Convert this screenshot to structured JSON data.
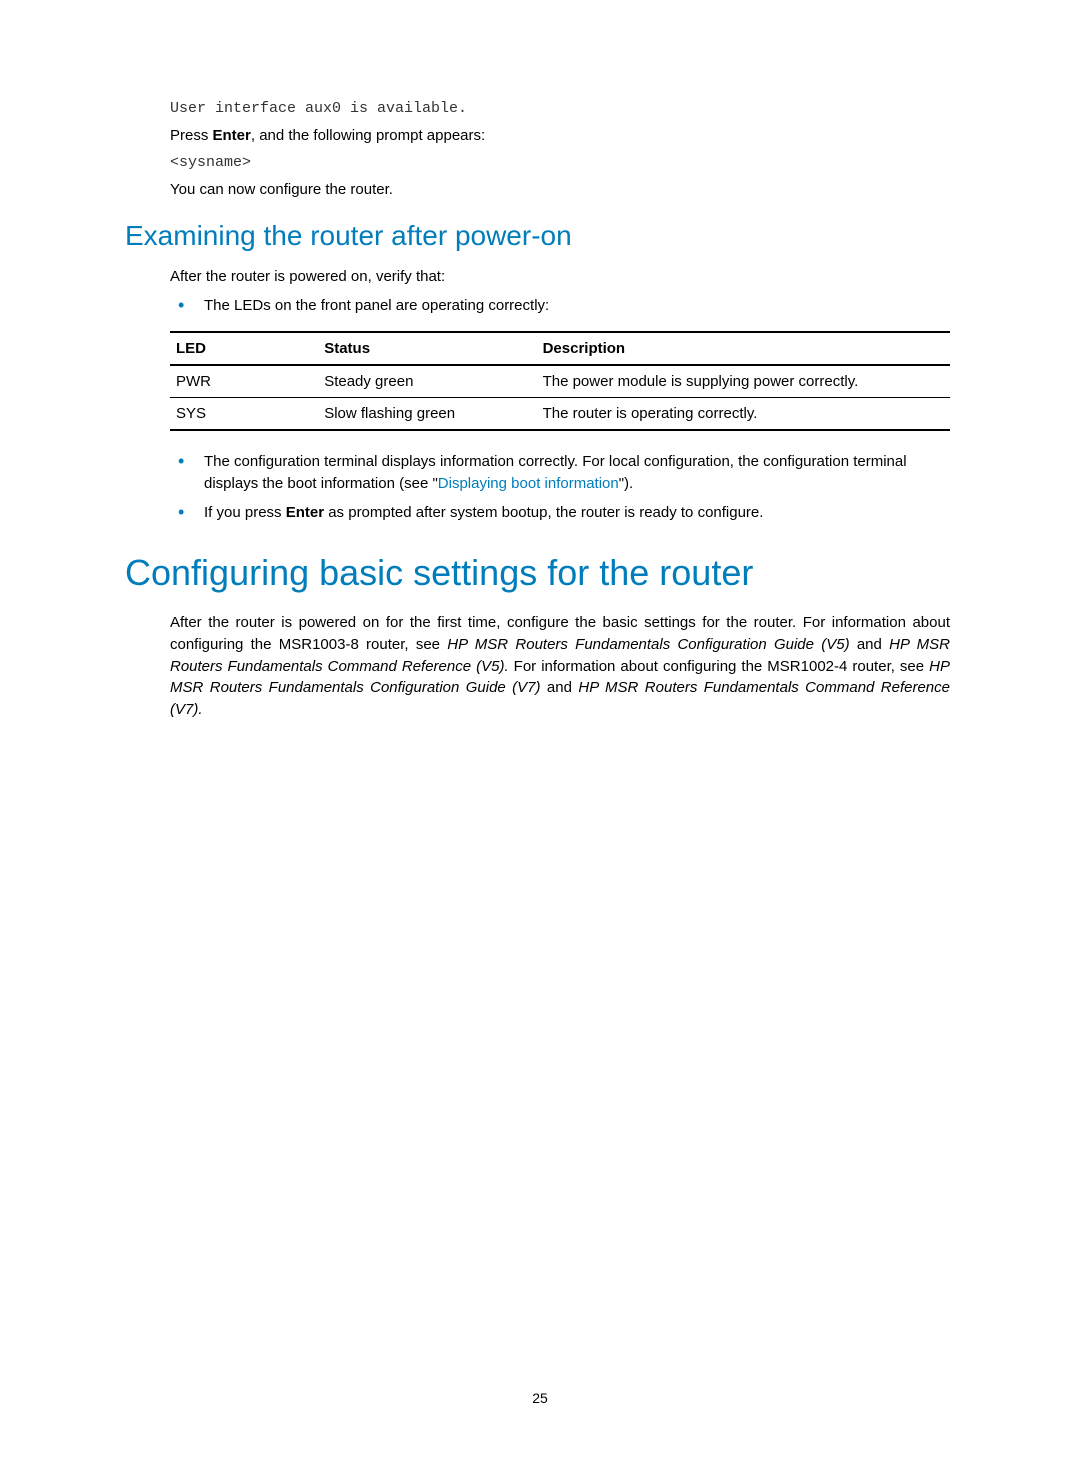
{
  "pre_lines": [
    "User interface aux0 is available."
  ],
  "press_enter_prefix": "Press ",
  "press_enter_bold": "Enter",
  "press_enter_suffix": ", and the following prompt appears:",
  "sysname": "<sysname>",
  "configure_note": "You can now configure the router.",
  "section_examine_title": "Examining the router after power-on",
  "examine_intro": "After the router is powered on, verify that:",
  "examine_bullet1": "The LEDs on the front panel are operating correctly:",
  "led_table": {
    "headers": [
      "LED",
      "Status",
      "Description"
    ],
    "rows": [
      [
        "PWR",
        "Steady green",
        "The power module is supplying power correctly."
      ],
      [
        "SYS",
        "Slow flashing green",
        "The router is operating correctly."
      ]
    ],
    "col_widths": [
      "19%",
      "28%",
      "53%"
    ],
    "border_color": "#000000",
    "header_border_width": 2,
    "row_border_width": 1
  },
  "examine_bullet2_a": "The configuration terminal displays information correctly. For local configuration, the configuration terminal displays the boot information (see \"",
  "examine_bullet2_link": "Displaying boot information",
  "examine_bullet2_b": "\").",
  "examine_bullet3_a": "If you press ",
  "examine_bullet3_bold": "Enter",
  "examine_bullet3_b": " as prompted after system bootup, the router is ready to configure.",
  "section_config_title": "Configuring basic settings for the router",
  "config_para_a": "After the router is powered on for the first time, configure the basic settings for the router. For information about configuring the MSR1003-8 router, see ",
  "config_para_i1": "HP MSR Routers Fundamentals Configuration Guide (V5)",
  "config_para_b": " and ",
  "config_para_i2": "HP MSR Routers Fundamentals Command Reference (V5).",
  "config_para_c": " For information about configuring the MSR1002-4 router, see ",
  "config_para_i3": "HP MSR Routers Fundamentals Configuration Guide (V7)",
  "config_para_d": " and ",
  "config_para_i4": "HP MSR Routers Fundamentals Command Reference (V7).",
  "page_number": "25",
  "colors": {
    "heading": "#007dba",
    "link": "#007dba",
    "text": "#000000",
    "mono": "#333333",
    "background": "#ffffff"
  },
  "fonts": {
    "body_size_pt": 11,
    "h1_size_pt": 27,
    "h2_size_pt": 21,
    "mono_family": "Courier New"
  }
}
